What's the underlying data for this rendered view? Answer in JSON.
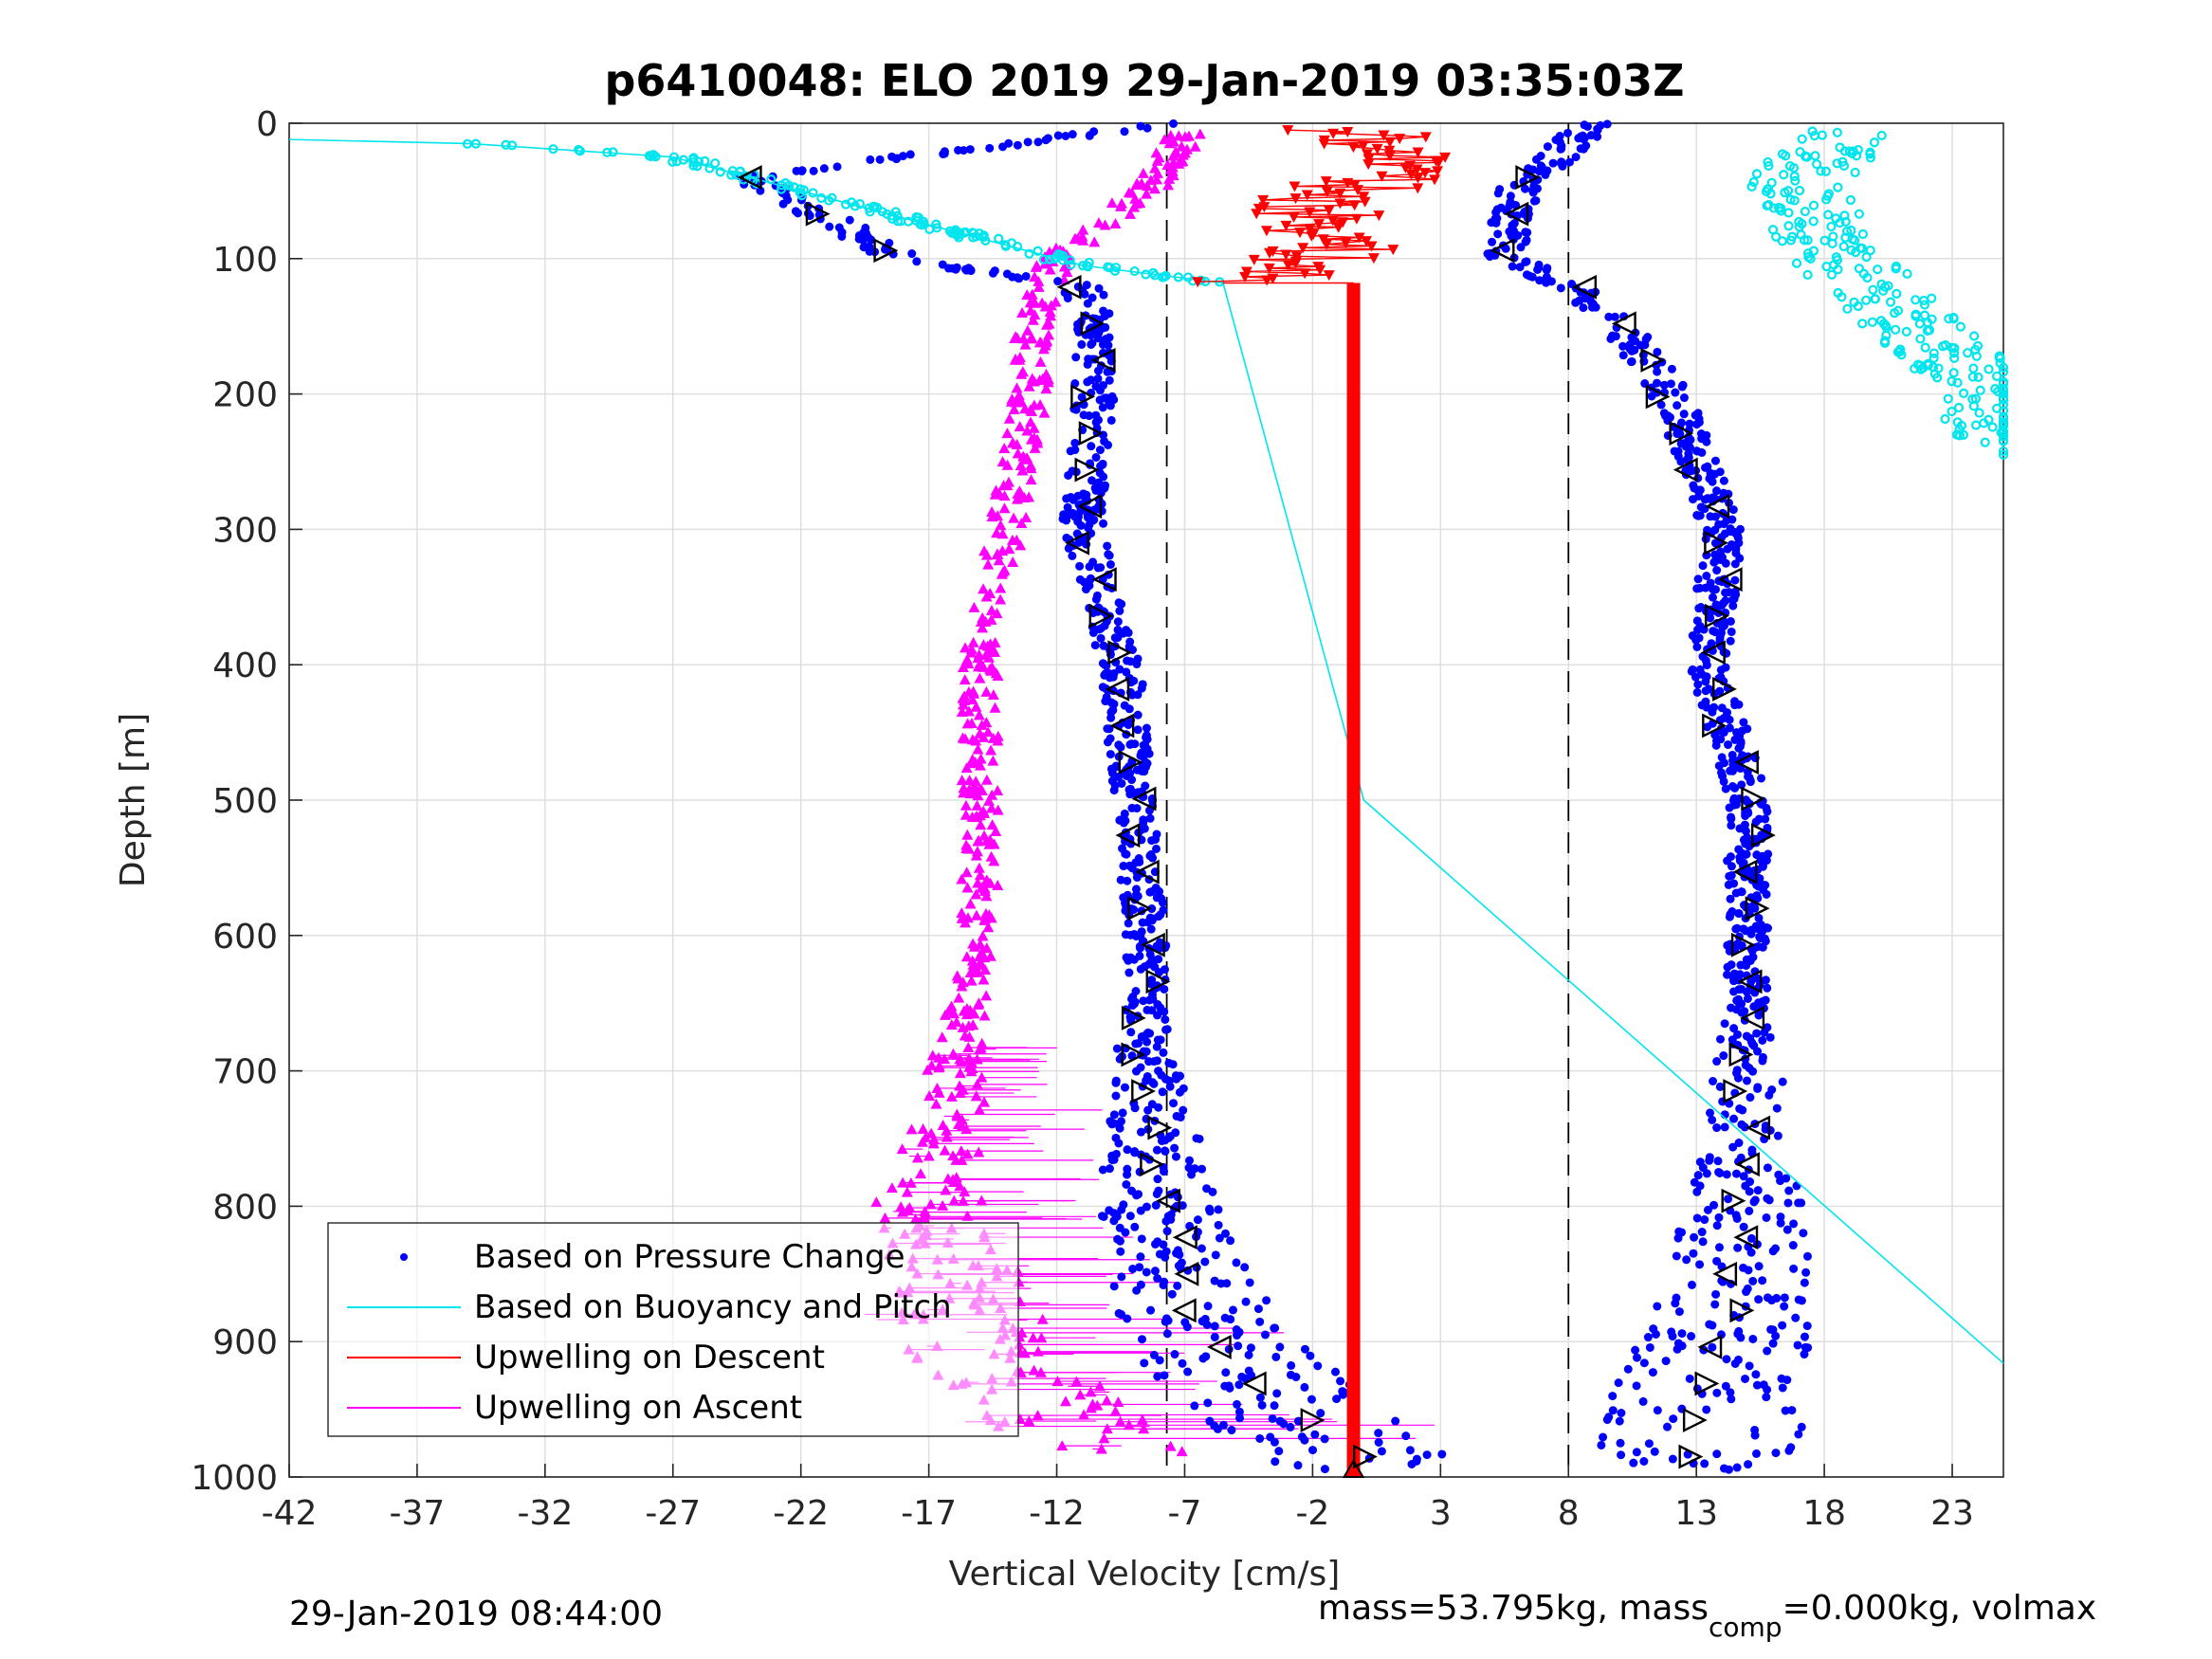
{
  "chart_data": {
    "type": "scatter",
    "title": "p6410048: ELO 2019 29-Jan-2019 03:35:03Z",
    "xlabel": "Vertical Velocity [cm/s]",
    "ylabel": "Depth [m]",
    "xlim": [
      -42,
      25
    ],
    "ylim": [
      0,
      1000
    ],
    "y_reversed": true,
    "xticks": [
      -42,
      -37,
      -32,
      -27,
      -22,
      -17,
      -12,
      -7,
      -2,
      3,
      8,
      13,
      18,
      23
    ],
    "xtick_labels": [
      "-42",
      "-37",
      "-32",
      "-27",
      "-22",
      "-17",
      "-12",
      "-7",
      "-2",
      "3",
      "8",
      "13",
      "18",
      "23"
    ],
    "yticks": [
      0,
      100,
      200,
      300,
      400,
      500,
      600,
      700,
      800,
      900,
      1000
    ],
    "ytick_labels": [
      "0",
      "100",
      "200",
      "300",
      "400",
      "500",
      "600",
      "700",
      "800",
      "900",
      "1000"
    ],
    "grid": true,
    "legend_position": "bottom-left",
    "reference_lines": [
      -7.7,
      8
    ],
    "series": [
      {
        "name": "Based on Pressure Change",
        "color": "#0000ff",
        "style": "dots",
        "descent_profile": [
          [
            0,
            -7.5
          ],
          [
            40,
            -24
          ],
          [
            100,
            -18
          ],
          [
            120,
            -11
          ],
          [
            160,
            -10.5
          ],
          [
            200,
            -10.5
          ],
          [
            300,
            -11
          ],
          [
            400,
            -9.5
          ],
          [
            500,
            -9
          ],
          [
            600,
            -8.5
          ],
          [
            700,
            -8.5
          ],
          [
            800,
            -8
          ],
          [
            900,
            -6
          ],
          [
            950,
            -3
          ],
          [
            990,
            0
          ]
        ],
        "ascent_profile": [
          [
            0,
            9
          ],
          [
            50,
            6
          ],
          [
            100,
            5.5
          ],
          [
            120,
            8
          ],
          [
            150,
            10
          ],
          [
            200,
            12
          ],
          [
            300,
            14
          ],
          [
            400,
            13.5
          ],
          [
            500,
            15
          ],
          [
            600,
            15
          ],
          [
            700,
            15
          ],
          [
            800,
            15
          ],
          [
            900,
            14
          ],
          [
            980,
            13
          ]
        ]
      },
      {
        "name": "Based on Buoyancy and Pitch",
        "color": "#00e5ee",
        "style": "line-dots",
        "descent_profile": [
          [
            12,
            -42
          ],
          [
            15,
            -35
          ],
          [
            25,
            -27
          ],
          [
            50,
            -22
          ],
          [
            75,
            -17
          ],
          [
            105,
            -11
          ],
          [
            118,
            -5.5
          ],
          [
            500,
            0
          ],
          [
            916,
            25
          ]
        ],
        "ascent_profile": [
          [
            5,
            19
          ],
          [
            40,
            17
          ],
          [
            90,
            18
          ],
          [
            140,
            21
          ],
          [
            190,
            24
          ],
          [
            245,
            25
          ]
        ]
      },
      {
        "name": "Upwelling on Descent",
        "color": "#ff0000",
        "style": "line-triangle-down",
        "descent_profile": [
          [
            5,
            -0.5
          ],
          [
            30,
            2
          ],
          [
            60,
            -2
          ],
          [
            90,
            -1
          ],
          [
            110,
            -3
          ],
          [
            118,
            -5
          ]
        ],
        "column_value": -0.4,
        "column_depth_range": [
          118,
          1000
        ]
      },
      {
        "name": "Upwelling on Ascent",
        "color": "#ff00ff",
        "style": "line-triangle-up",
        "ascent_profile": [
          [
            10,
            -7
          ],
          [
            50,
            -8.5
          ],
          [
            100,
            -12
          ],
          [
            150,
            -13
          ],
          [
            200,
            -13
          ],
          [
            300,
            -14
          ],
          [
            400,
            -15
          ],
          [
            500,
            -15
          ],
          [
            600,
            -15
          ],
          [
            700,
            -16
          ],
          [
            800,
            -17
          ],
          [
            900,
            -15
          ],
          [
            960,
            -12
          ],
          [
            980,
            -8
          ]
        ]
      }
    ],
    "legend": [
      "Based on Pressure Change",
      "Based on Buoyancy and Pitch",
      "Upwelling on Descent",
      "Upwelling on Ascent"
    ],
    "annotations": {
      "timestamp": "29-Jan-2019 08:44:00",
      "mass_prefix": "mass=53.795kg, mass",
      "mass_sub": "comp",
      "mass_suffix": "=0.000kg, volmax"
    }
  }
}
